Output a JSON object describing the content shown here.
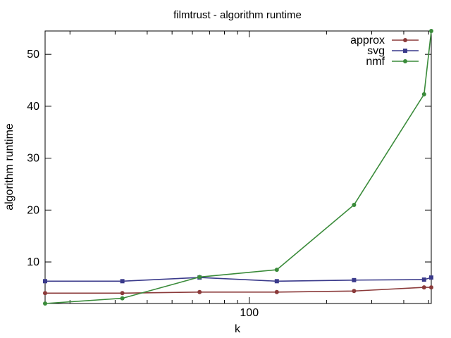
{
  "chart_data": {
    "type": "line",
    "title": "filmtrust - algorithm runtime",
    "xlabel": "k",
    "ylabel": "algorithm runtime",
    "xscale": "log",
    "xlim": [
      16,
      512
    ],
    "ylim": [
      2,
      54.5
    ],
    "xticks": [
      100
    ],
    "yticks": [
      10,
      20,
      30,
      40,
      50
    ],
    "grid": false,
    "legend_position": "top-right",
    "series": [
      {
        "name": "approx",
        "color": "#8B3A3A",
        "marker": "circle",
        "x": [
          16,
          32,
          64,
          128,
          256,
          480,
          512
        ],
        "y": [
          4.0,
          4.0,
          4.2,
          4.2,
          4.4,
          5.1,
          5.1
        ]
      },
      {
        "name": "svg",
        "color": "#3A3A8B",
        "marker": "square",
        "x": [
          16,
          32,
          64,
          128,
          256,
          480,
          512
        ],
        "y": [
          6.3,
          6.3,
          7.0,
          6.3,
          6.5,
          6.6,
          7.0
        ]
      },
      {
        "name": "nmf",
        "color": "#3A8B3A",
        "marker": "circle",
        "x": [
          16,
          32,
          64,
          128,
          256,
          480,
          512
        ],
        "y": [
          2.0,
          3.0,
          7.1,
          8.5,
          21.0,
          42.3,
          54.5
        ]
      }
    ]
  }
}
